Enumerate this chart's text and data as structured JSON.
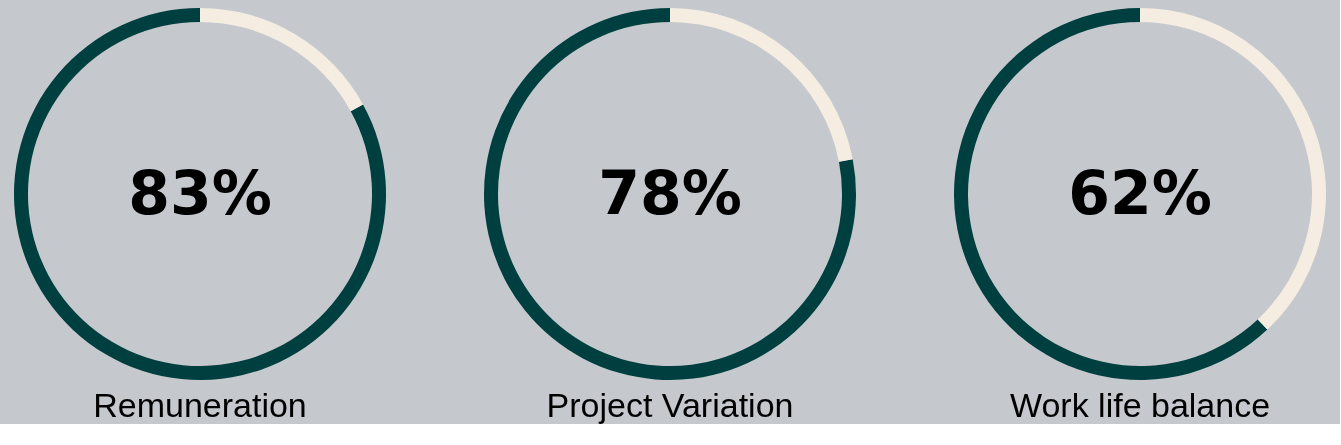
{
  "chart_data": [
    {
      "type": "donut",
      "title": "Remuneration",
      "categories": [
        null,
        null
      ],
      "values": [
        83,
        17
      ],
      "colors": [
        "#003f3f",
        "#f5ede2"
      ],
      "annotations": [
        "83%"
      ],
      "legend": false
    },
    {
      "type": "donut",
      "title": "Project Variation",
      "categories": [
        null,
        null
      ],
      "values": [
        78,
        22
      ],
      "colors": [
        "#003f3f",
        "#f5ede2"
      ],
      "annotations": [
        "78%"
      ],
      "legend": false
    },
    {
      "type": "donut",
      "title": "Work life balance",
      "categories": [
        null,
        null
      ],
      "values": [
        62,
        38
      ],
      "colors": [
        "#003f3f",
        "#f5ede2"
      ],
      "annotations": [
        "62%"
      ],
      "legend": false
    }
  ]
}
